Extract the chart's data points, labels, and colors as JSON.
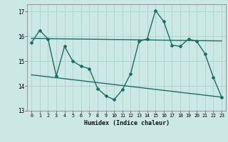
{
  "title": "",
  "xlabel": "Humidex (Indice chaleur)",
  "ylabel": "",
  "background_color": "#cce8e4",
  "grid_color": "#aad4cc",
  "line_color": "#1a6e65",
  "xlim": [
    -0.5,
    23.5
  ],
  "ylim": [
    13.0,
    17.3
  ],
  "yticks": [
    13,
    14,
    15,
    16,
    17
  ],
  "xticks": [
    0,
    1,
    2,
    3,
    4,
    5,
    6,
    7,
    8,
    9,
    10,
    11,
    12,
    13,
    14,
    15,
    16,
    17,
    18,
    19,
    20,
    21,
    22,
    23
  ],
  "data_x": [
    0,
    1,
    2,
    3,
    4,
    5,
    6,
    7,
    8,
    9,
    10,
    11,
    12,
    13,
    14,
    15,
    16,
    17,
    18,
    19,
    20,
    21,
    22,
    23
  ],
  "data_y": [
    15.75,
    16.25,
    15.9,
    14.4,
    15.6,
    15.0,
    14.8,
    14.7,
    13.9,
    13.6,
    13.45,
    13.85,
    14.5,
    15.8,
    15.9,
    17.05,
    16.6,
    15.65,
    15.6,
    15.9,
    15.8,
    15.3,
    14.35,
    13.55
  ],
  "trend1_x": [
    0,
    23
  ],
  "trend1_y": [
    15.92,
    15.82
  ],
  "trend2_x": [
    0,
    23
  ],
  "trend2_y": [
    14.45,
    13.55
  ]
}
